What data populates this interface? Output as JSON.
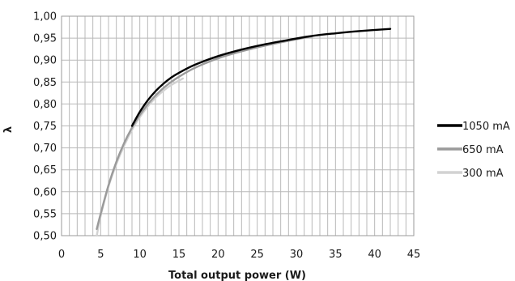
{
  "chart_data": {
    "type": "line",
    "title": "",
    "xlabel": "Total output power (W)",
    "ylabel": "λ",
    "xlim": [
      0,
      45
    ],
    "ylim": [
      0.5,
      1.0
    ],
    "x_ticks": [
      "0",
      "5",
      "10",
      "15",
      "20",
      "25",
      "30",
      "35",
      "40",
      "45"
    ],
    "y_ticks": [
      "0,50",
      "0,55",
      "0,60",
      "0,65",
      "0,70",
      "0,75",
      "0,80",
      "0,85",
      "0,90",
      "0,95",
      "1,00"
    ],
    "grid": true,
    "legend_position": "right",
    "series": [
      {
        "name": "1050 mA",
        "color": "#000000",
        "x": [
          9.0,
          10,
          11,
          12,
          13,
          14,
          15,
          17,
          20,
          23,
          26,
          29,
          32,
          35,
          38,
          42
        ],
        "y": [
          0.75,
          0.782,
          0.808,
          0.829,
          0.846,
          0.86,
          0.871,
          0.889,
          0.909,
          0.924,
          0.936,
          0.946,
          0.955,
          0.961,
          0.966,
          0.971
        ]
      },
      {
        "name": "650 mA",
        "color": "#9a9a9a",
        "x": [
          4.5,
          5,
          6,
          7,
          8,
          9,
          10,
          11,
          12,
          13,
          14,
          15,
          17,
          20,
          23,
          26,
          29,
          32
        ],
        "y": [
          0.515,
          0.55,
          0.615,
          0.668,
          0.711,
          0.746,
          0.775,
          0.799,
          0.819,
          0.836,
          0.85,
          0.862,
          0.882,
          0.904,
          0.92,
          0.933,
          0.944,
          0.954
        ]
      },
      {
        "name": "300 mA",
        "color": "#d2d2d2",
        "x": [
          4.5,
          5,
          6,
          7,
          8,
          9,
          10,
          11,
          12,
          13,
          14,
          15.5
        ],
        "y": [
          0.5,
          0.545,
          0.612,
          0.663,
          0.705,
          0.741,
          0.77,
          0.794,
          0.814,
          0.83,
          0.843,
          0.858
        ]
      }
    ]
  }
}
